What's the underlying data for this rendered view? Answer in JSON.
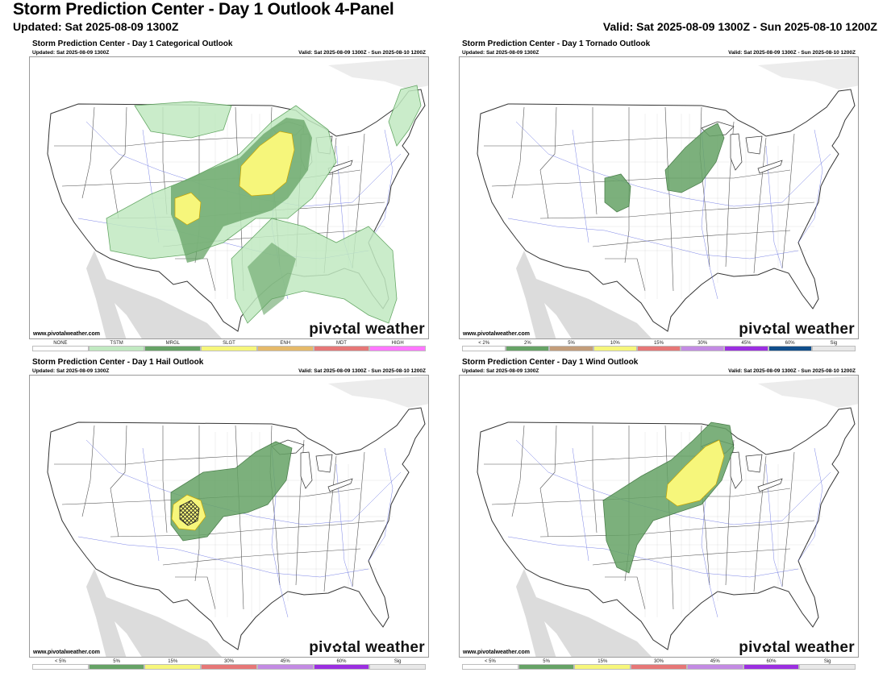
{
  "header": {
    "title": "Storm Prediction Center - Day 1 Outlook 4-Panel",
    "updated": "Updated: Sat 2025-08-09 1300Z",
    "valid": "Valid: Sat 2025-08-09 1300Z - Sun 2025-08-10 1200Z"
  },
  "panels": [
    {
      "title": "Storm Prediction Center - Day 1 Categorical Outlook",
      "updated": "Updated: Sat 2025-08-09 1300Z",
      "valid": "Valid: Sat 2025-08-09 1300Z - Sun 2025-08-10 1200Z",
      "credit": "www.pivotalweather.com",
      "brand_left": "piv",
      "brand_right": "tal weather",
      "legend": [
        {
          "label": "NONE",
          "color": "#ffffff"
        },
        {
          "label": "TSTM",
          "color": "#c1e9c1"
        },
        {
          "label": "MRGL",
          "color": "#66a366"
        },
        {
          "label": "SLGT",
          "color": "#f6f67b"
        },
        {
          "label": "ENH",
          "color": "#e5b96a"
        },
        {
          "label": "MDT",
          "color": "#e67777"
        },
        {
          "label": "HIGH",
          "color": "#ff77ff"
        }
      ]
    },
    {
      "title": "Storm Prediction Center - Day 1 Tornado Outlook",
      "updated": "Updated: Sat 2025-08-09 1300Z",
      "valid": "Valid: Sat 2025-08-09 1300Z - Sun 2025-08-10 1200Z",
      "credit": "www.pivotalweather.com",
      "brand_left": "piv",
      "brand_right": "tal weather",
      "legend": [
        {
          "label": "< 2%",
          "color": "#ffffff"
        },
        {
          "label": "2%",
          "color": "#66a366"
        },
        {
          "label": "5%",
          "color": "#c39d7a"
        },
        {
          "label": "10%",
          "color": "#f6f67b"
        },
        {
          "label": "15%",
          "color": "#e67777"
        },
        {
          "label": "30%",
          "color": "#c38be3"
        },
        {
          "label": "45%",
          "color": "#9b2fe0"
        },
        {
          "label": "60%",
          "color": "#104e8b"
        },
        {
          "label": "Sig",
          "color": "#e8e8e8"
        }
      ]
    },
    {
      "title": "Storm Prediction Center - Day 1 Hail Outlook",
      "updated": "Updated: Sat 2025-08-09 1300Z",
      "valid": "Valid: Sat 2025-08-09 1300Z - Sun 2025-08-10 1200Z",
      "credit": "www.pivotalweather.com",
      "brand_left": "piv",
      "brand_right": "tal weather",
      "legend": [
        {
          "label": "< 5%",
          "color": "#ffffff"
        },
        {
          "label": "5%",
          "color": "#66a366"
        },
        {
          "label": "15%",
          "color": "#f6f67b"
        },
        {
          "label": "30%",
          "color": "#e67777"
        },
        {
          "label": "45%",
          "color": "#c38be3"
        },
        {
          "label": "60%",
          "color": "#9b2fe0"
        },
        {
          "label": "Sig",
          "color": "#e8e8e8"
        }
      ]
    },
    {
      "title": "Storm Prediction Center - Day 1 Wind Outlook",
      "updated": "Updated: Sat 2025-08-09 1300Z",
      "valid": "Valid: Sat 2025-08-09 1300Z - Sun 2025-08-10 1200Z",
      "credit": "www.pivotalweather.com",
      "brand_left": "piv",
      "brand_right": "tal weather",
      "legend": [
        {
          "label": "< 5%",
          "color": "#ffffff"
        },
        {
          "label": "5%",
          "color": "#66a366"
        },
        {
          "label": "15%",
          "color": "#f6f67b"
        },
        {
          "label": "30%",
          "color": "#e67777"
        },
        {
          "label": "45%",
          "color": "#c38be3"
        },
        {
          "label": "60%",
          "color": "#9b2fe0"
        },
        {
          "label": "Sig",
          "color": "#e8e8e8"
        }
      ]
    }
  ]
}
